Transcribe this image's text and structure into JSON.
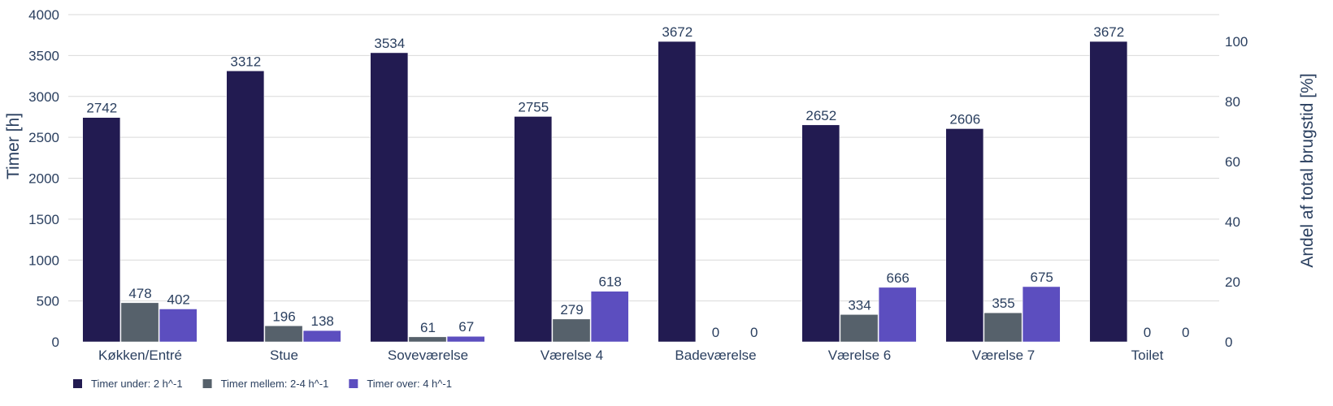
{
  "chart_data": {
    "type": "bar",
    "categories": [
      "Køkken/Entré",
      "Stue",
      "Soveværelse",
      "Værelse 4",
      "Badeværelse",
      "Værelse 6",
      "Værelse 7",
      "Toilet"
    ],
    "series": [
      {
        "name": "Timer under: 2 h^-1",
        "values": [
          2742,
          3312,
          3534,
          2755,
          3672,
          2652,
          2606,
          3672
        ],
        "color": "#221b51"
      },
      {
        "name": "Timer mellem: 2-4 h^-1",
        "values": [
          478,
          196,
          61,
          279,
          0,
          334,
          355,
          0
        ],
        "color": "#56616b"
      },
      {
        "name": "Timer over: 4 h^-1",
        "values": [
          402,
          138,
          67,
          618,
          0,
          666,
          675,
          0
        ],
        "color": "#5c4ebf"
      }
    ],
    "ylabel": "Timer [h]",
    "y2label": "Andel af total brugstid [%]",
    "ylim": [
      0,
      4000
    ],
    "yticks": [
      0,
      500,
      1000,
      1500,
      2000,
      2500,
      3000,
      3500,
      4000
    ],
    "y2lim": [
      0,
      108.93
    ],
    "y2ticks": [
      0,
      20,
      40,
      60,
      80,
      100
    ],
    "grid": true,
    "legend": "bottom-left",
    "data_labels": true
  }
}
